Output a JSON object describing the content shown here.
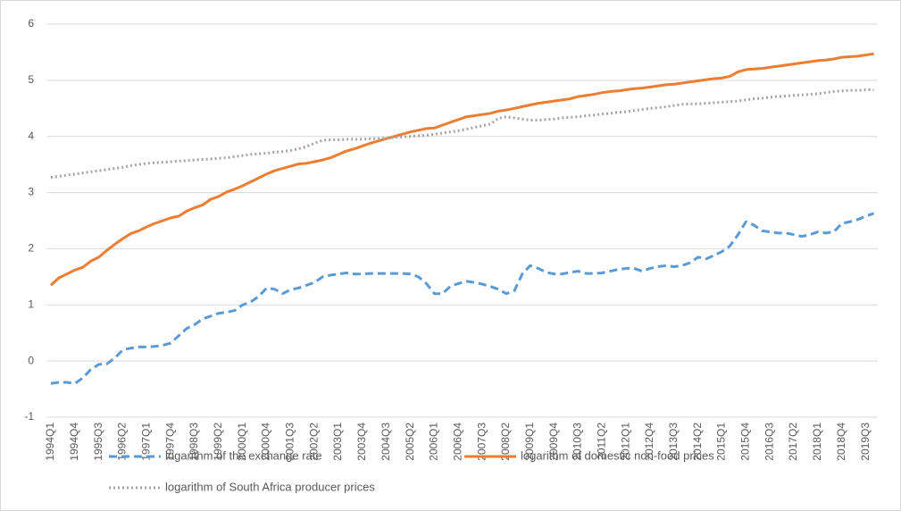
{
  "chart_data": {
    "type": "line",
    "categories": [
      "1994Q1",
      null,
      null,
      "1994Q4",
      null,
      null,
      "1995Q3",
      null,
      null,
      "1996Q2",
      null,
      null,
      "1997Q1",
      null,
      null,
      "1997Q4",
      null,
      null,
      "1998Q3",
      null,
      null,
      "1999Q2",
      null,
      null,
      "2000Q1",
      null,
      null,
      "2000Q4",
      null,
      null,
      "2001Q3",
      null,
      null,
      "2002Q2",
      null,
      null,
      "2003Q1",
      null,
      null,
      "2003Q4",
      null,
      null,
      "2004Q3",
      null,
      null,
      "2005Q2",
      null,
      null,
      "2006Q1",
      null,
      null,
      "2006Q4",
      null,
      null,
      "2007Q3",
      null,
      null,
      "2008Q2",
      null,
      null,
      "2009Q1",
      null,
      null,
      "2009Q4",
      null,
      null,
      "2010Q3",
      null,
      null,
      "2011Q2",
      null,
      null,
      "2012Q1",
      null,
      null,
      "2012Q4",
      null,
      null,
      "2013Q3",
      null,
      null,
      "2014Q2",
      null,
      null,
      "2015Q1",
      null,
      null,
      "2015Q4",
      null,
      null,
      "2016Q3",
      null,
      null,
      "2017Q2",
      null,
      null,
      "2018Q1",
      null,
      null,
      "2018Q4",
      null,
      null,
      "2019Q3",
      null
    ],
    "series": [
      {
        "name": "logarithm of the exchange rate",
        "color": "#5b9bd5",
        "style": "dashed",
        "values": [
          -0.4,
          -0.38,
          -0.38,
          -0.4,
          -0.3,
          -0.15,
          -0.06,
          -0.05,
          0.05,
          0.2,
          0.23,
          0.25,
          0.25,
          0.26,
          0.28,
          0.32,
          0.45,
          0.58,
          0.65,
          0.75,
          0.8,
          0.85,
          0.87,
          0.9,
          1.0,
          1.05,
          1.15,
          1.3,
          1.28,
          1.2,
          1.27,
          1.3,
          1.35,
          1.4,
          1.5,
          1.53,
          1.55,
          1.57,
          1.55,
          1.55,
          1.56,
          1.56,
          1.56,
          1.56,
          1.56,
          1.55,
          1.5,
          1.38,
          1.2,
          1.2,
          1.33,
          1.38,
          1.42,
          1.4,
          1.37,
          1.33,
          1.28,
          1.2,
          1.25,
          1.55,
          1.7,
          1.65,
          1.58,
          1.55,
          1.55,
          1.58,
          1.6,
          1.56,
          1.56,
          1.57,
          1.6,
          1.63,
          1.65,
          1.65,
          1.6,
          1.65,
          1.68,
          1.7,
          1.68,
          1.7,
          1.75,
          1.85,
          1.82,
          1.88,
          1.95,
          2.05,
          2.25,
          2.48,
          2.42,
          2.32,
          2.3,
          2.28,
          2.28,
          2.25,
          2.22,
          2.25,
          2.3,
          2.28,
          2.3,
          2.45,
          2.48,
          2.52,
          2.58,
          2.63
        ]
      },
      {
        "name": "logarithm of domestic non-food prices",
        "color": "#ed7d31",
        "style": "solid",
        "values": [
          1.35,
          1.48,
          1.55,
          1.62,
          1.67,
          1.78,
          1.85,
          1.97,
          2.08,
          2.18,
          2.27,
          2.32,
          2.39,
          2.45,
          2.5,
          2.55,
          2.58,
          2.67,
          2.73,
          2.78,
          2.88,
          2.93,
          3.01,
          3.06,
          3.12,
          3.19,
          3.26,
          3.33,
          3.39,
          3.43,
          3.47,
          3.51,
          3.52,
          3.55,
          3.58,
          3.62,
          3.68,
          3.74,
          3.78,
          3.83,
          3.88,
          3.92,
          3.96,
          4.0,
          4.04,
          4.08,
          4.11,
          4.14,
          4.15,
          4.2,
          4.25,
          4.3,
          4.35,
          4.37,
          4.39,
          4.41,
          4.45,
          4.47,
          4.5,
          4.53,
          4.56,
          4.59,
          4.61,
          4.63,
          4.65,
          4.67,
          4.71,
          4.73,
          4.75,
          4.78,
          4.8,
          4.81,
          4.83,
          4.85,
          4.86,
          4.88,
          4.9,
          4.92,
          4.93,
          4.95,
          4.97,
          4.99,
          5.01,
          5.03,
          5.04,
          5.07,
          5.15,
          5.19,
          5.2,
          5.21,
          5.23,
          5.25,
          5.27,
          5.29,
          5.31,
          5.33,
          5.35,
          5.36,
          5.38,
          5.41,
          5.42,
          5.43,
          5.45,
          5.47
        ]
      },
      {
        "name": "logarithm of South Africa producer prices",
        "color": "#a5a5a5",
        "style": "dotted",
        "values": [
          3.27,
          3.29,
          3.31,
          3.33,
          3.35,
          3.37,
          3.39,
          3.41,
          3.43,
          3.45,
          3.48,
          3.5,
          3.52,
          3.53,
          3.54,
          3.55,
          3.56,
          3.57,
          3.58,
          3.59,
          3.6,
          3.61,
          3.62,
          3.64,
          3.66,
          3.68,
          3.69,
          3.7,
          3.72,
          3.73,
          3.75,
          3.78,
          3.82,
          3.88,
          3.93,
          3.94,
          3.94,
          3.95,
          3.95,
          3.95,
          3.96,
          3.96,
          3.97,
          3.98,
          3.99,
          4.0,
          4.01,
          4.02,
          4.04,
          4.06,
          4.08,
          4.1,
          4.13,
          4.16,
          4.19,
          4.22,
          4.32,
          4.35,
          4.33,
          4.31,
          4.29,
          4.29,
          4.3,
          4.31,
          4.33,
          4.34,
          4.35,
          4.37,
          4.38,
          4.4,
          4.41,
          4.43,
          4.44,
          4.46,
          4.48,
          4.5,
          4.51,
          4.53,
          4.55,
          4.57,
          4.58,
          4.58,
          4.59,
          4.6,
          4.61,
          4.62,
          4.63,
          4.65,
          4.67,
          4.68,
          4.7,
          4.71,
          4.72,
          4.73,
          4.74,
          4.75,
          4.76,
          4.78,
          4.8,
          4.81,
          4.82,
          4.82,
          4.83,
          4.83
        ]
      }
    ],
    "ylim": [
      -1,
      6
    ],
    "yticks": [
      -1,
      0,
      1,
      2,
      3,
      4,
      5,
      6
    ],
    "grid": true
  }
}
